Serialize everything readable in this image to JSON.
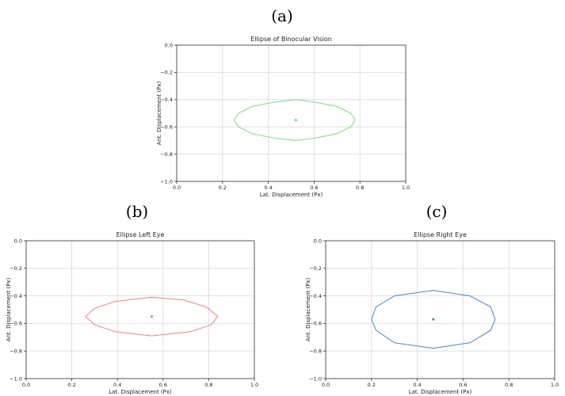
{
  "panels": [
    {
      "letter": "(a)"
    },
    {
      "letter": "(b)"
    },
    {
      "letter": "(c)"
    }
  ],
  "chart_data": [
    {
      "type": "line",
      "title": "Ellipse of Binocular Vision",
      "xlabel": "Lat. Displacement (Px)",
      "ylabel": "Ant. Displacement (Px)",
      "xlim": [
        0.0,
        1.0
      ],
      "ylim": [
        -1.0,
        0.0
      ],
      "xticks": [
        "0.0",
        "0.2",
        "0.4",
        "0.6",
        "0.8",
        "1.0"
      ],
      "yticks": [
        "0.0",
        "−0.2",
        "−0.4",
        "−0.6",
        "−0.8",
        "−1.0"
      ],
      "grid": true,
      "color": "#7ddc7d",
      "series": [
        {
          "x": [
            0.78,
            0.76,
            0.7,
            0.61,
            0.52,
            0.42,
            0.33,
            0.27,
            0.25,
            0.27,
            0.33,
            0.42,
            0.52,
            0.61,
            0.7,
            0.76,
            0.78
          ],
          "y": [
            -0.55,
            -0.6,
            -0.65,
            -0.68,
            -0.7,
            -0.68,
            -0.65,
            -0.6,
            -0.55,
            -0.5,
            -0.45,
            -0.42,
            -0.4,
            -0.42,
            -0.45,
            -0.5,
            -0.55
          ]
        }
      ],
      "center": {
        "x": 0.52,
        "y": -0.55
      }
    },
    {
      "type": "line",
      "title": "Ellipse Left Eye",
      "xlabel": "Lat. Displacement (Px)",
      "ylabel": "Ant. Displacement (Px)",
      "xlim": [
        0.0,
        1.0
      ],
      "ylim": [
        -1.0,
        0.0
      ],
      "xticks": [
        "0.0",
        "0.2",
        "0.4",
        "0.6",
        "0.8",
        "1.0"
      ],
      "yticks": [
        "0.0",
        "−0.2",
        "−0.4",
        "−0.6",
        "−0.8",
        "−1.0"
      ],
      "grid": true,
      "color": "#f08080",
      "series": [
        {
          "x": [
            0.84,
            0.81,
            0.72,
            0.61,
            0.55,
            0.39,
            0.3,
            0.26,
            0.3,
            0.39,
            0.55,
            0.69,
            0.79,
            0.84
          ],
          "y": [
            -0.55,
            -0.61,
            -0.66,
            -0.68,
            -0.69,
            -0.66,
            -0.61,
            -0.55,
            -0.49,
            -0.44,
            -0.41,
            -0.43,
            -0.48,
            -0.55
          ]
        }
      ],
      "center": {
        "x": 0.55,
        "y": -0.55
      }
    },
    {
      "type": "line",
      "title": "Ellipse Right Eye",
      "xlabel": "Lat. Displacement (Px)",
      "ylabel": "Ant. Displacement (Px)",
      "xlim": [
        0.0,
        1.0
      ],
      "ylim": [
        -1.0,
        0.0
      ],
      "xticks": [
        "0.0",
        "0.2",
        "0.4",
        "0.6",
        "0.8",
        "1.0"
      ],
      "yticks": [
        "0.0",
        "−0.2",
        "−0.4",
        "−0.6",
        "−0.8",
        "−1.0"
      ],
      "grid": true,
      "color": "#4a86c8",
      "series": [
        {
          "x": [
            0.74,
            0.72,
            0.63,
            0.47,
            0.3,
            0.22,
            0.2,
            0.22,
            0.3,
            0.47,
            0.63,
            0.72,
            0.74
          ],
          "y": [
            -0.57,
            -0.65,
            -0.74,
            -0.78,
            -0.74,
            -0.65,
            -0.57,
            -0.48,
            -0.4,
            -0.36,
            -0.4,
            -0.48,
            -0.57
          ]
        }
      ],
      "center": {
        "x": 0.47,
        "y": -0.57
      }
    }
  ]
}
